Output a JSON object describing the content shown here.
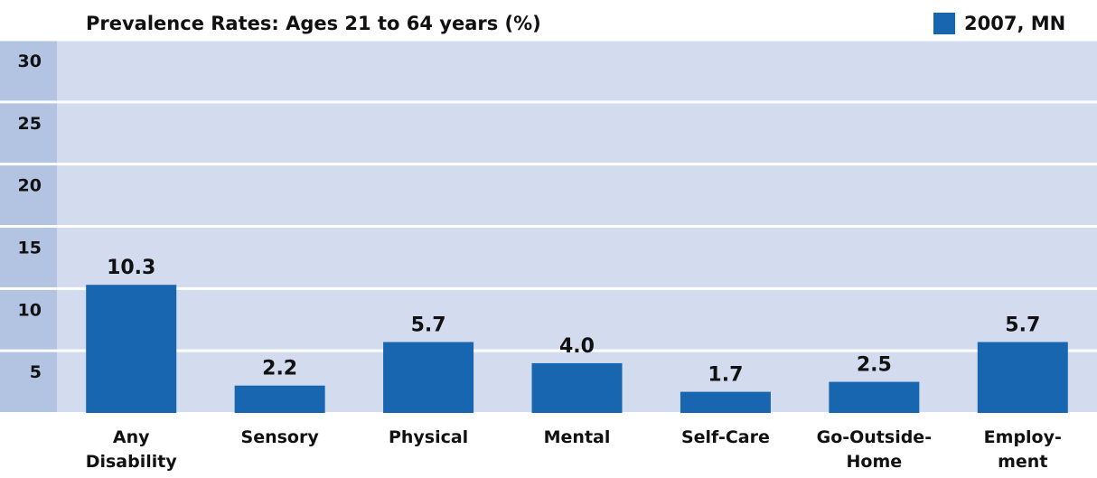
{
  "chart_data": {
    "type": "bar",
    "title": "Prevalence Rates: Ages 21 to 64 years (%)",
    "categories": [
      [
        "Any",
        "Disability"
      ],
      [
        "Sensory"
      ],
      [
        "Physical"
      ],
      [
        "Mental"
      ],
      [
        "Self-Care"
      ],
      [
        "Go-Outside-",
        "Home"
      ],
      [
        "Employ-",
        "ment"
      ]
    ],
    "series": [
      {
        "name": "2007, MN",
        "color": "#1865b0",
        "values": [
          10.3,
          2.2,
          5.7,
          4.0,
          1.7,
          2.5,
          5.7
        ],
        "value_labels": [
          "10.3",
          "2.2",
          "5.7",
          "4.0",
          "1.7",
          "2.5",
          "5.7"
        ]
      }
    ],
    "ylim": [
      0,
      30
    ],
    "yticks": [
      5,
      10,
      15,
      20,
      25,
      30
    ],
    "grid": true,
    "legend": "top-right"
  }
}
